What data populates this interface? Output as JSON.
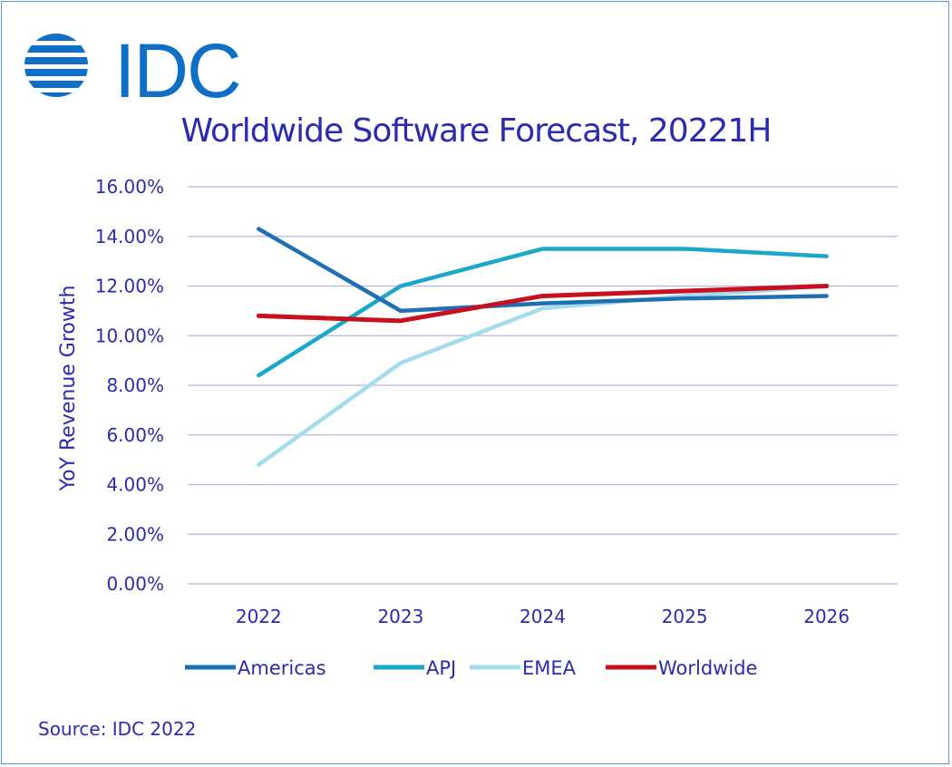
{
  "logo": {
    "text": "IDC"
  },
  "source": "Source: IDC 2022",
  "colors": {
    "text": "#2b2bb0",
    "grid": "#b4b4e6",
    "logo": "#0f6fc6"
  },
  "chart_data": {
    "type": "line",
    "title": "Worldwide Software Forecast, 20221H",
    "xlabel": "",
    "ylabel": "YoY Revenue  Growth",
    "categories": [
      "2022",
      "2023",
      "2024",
      "2025",
      "2026"
    ],
    "ylim": [
      0,
      16
    ],
    "yticks": [
      0,
      2,
      4,
      6,
      8,
      10,
      12,
      14,
      16
    ],
    "ytick_labels": [
      "0.00%",
      "2.00%",
      "4.00%",
      "6.00%",
      "8.00%",
      "10.00%",
      "12.00%",
      "14.00%",
      "16.00%"
    ],
    "grid": true,
    "legend_position": "bottom",
    "series": [
      {
        "name": "Americas",
        "color": "#1f6fb5",
        "values": [
          14.3,
          11.0,
          11.3,
          11.5,
          11.6
        ]
      },
      {
        "name": "APJ",
        "color": "#1aa7c9",
        "values": [
          8.4,
          12.0,
          13.5,
          13.5,
          13.2
        ]
      },
      {
        "name": "EMEA",
        "color": "#a4dced",
        "values": [
          4.8,
          8.9,
          11.1,
          11.6,
          12.0
        ]
      },
      {
        "name": "Worldwide",
        "color": "#c8101e",
        "values": [
          10.8,
          10.6,
          11.6,
          11.8,
          12.0
        ]
      }
    ]
  }
}
